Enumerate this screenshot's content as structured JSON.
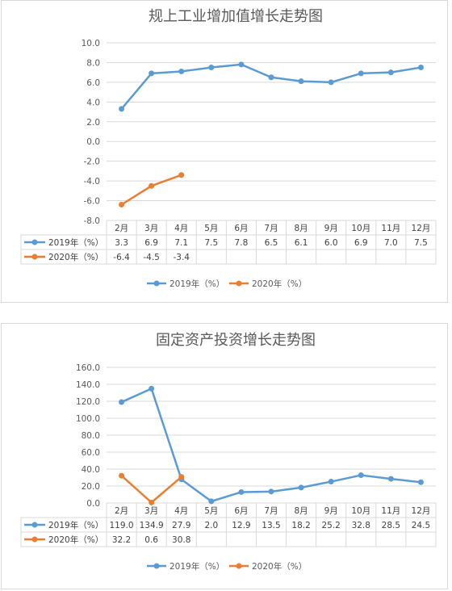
{
  "chart_data": [
    {
      "type": "line",
      "title": "规上工业增加值增长走势图",
      "categories": [
        "2月",
        "3月",
        "4月",
        "5月",
        "6月",
        "7月",
        "8月",
        "9月",
        "10月",
        "11月",
        "12月"
      ],
      "ylim": [
        -8,
        10
      ],
      "yticks": [
        "10.0",
        "8.0",
        "6.0",
        "4.0",
        "2.0",
        "0.0",
        "-2.0",
        "-4.0",
        "-6.0",
        "-8.0"
      ],
      "grid": true,
      "legend_position": "bottom",
      "data_table": true,
      "series": [
        {
          "name": "2019年（%）",
          "color": "#5b9bd5",
          "values": [
            3.3,
            6.9,
            7.1,
            7.5,
            7.8,
            6.5,
            6.1,
            6.0,
            6.9,
            7.0,
            7.5
          ],
          "labels": [
            "3.3",
            "6.9",
            "7.1",
            "7.5",
            "7.8",
            "6.5",
            "6.1",
            "6.0",
            "6.9",
            "7.0",
            "7.5"
          ]
        },
        {
          "name": "2020年（%）",
          "color": "#ed7d31",
          "values": [
            -6.4,
            -4.5,
            -3.4,
            null,
            null,
            null,
            null,
            null,
            null,
            null,
            null
          ],
          "labels": [
            "-6.4",
            "-4.5",
            "-3.4",
            "",
            "",
            "",
            "",
            "",
            "",
            "",
            ""
          ]
        }
      ]
    },
    {
      "type": "line",
      "title": "固定资产投资增长走势图",
      "categories": [
        "2月",
        "3月",
        "4月",
        "5月",
        "6月",
        "7月",
        "8月",
        "9月",
        "10月",
        "11月",
        "12月"
      ],
      "ylim": [
        0,
        160
      ],
      "yticks": [
        "160.0",
        "140.0",
        "120.0",
        "100.0",
        "80.0",
        "60.0",
        "40.0",
        "20.0",
        "0.0"
      ],
      "grid": true,
      "legend_position": "bottom",
      "data_table": true,
      "series": [
        {
          "name": "2019年（%）",
          "color": "#5b9bd5",
          "values": [
            119.0,
            134.9,
            27.9,
            2.0,
            12.9,
            13.5,
            18.2,
            25.2,
            32.8,
            28.5,
            24.5
          ],
          "labels": [
            "119.0",
            "134.9",
            "27.9",
            "2.0",
            "12.9",
            "13.5",
            "18.2",
            "25.2",
            "32.8",
            "28.5",
            "24.5"
          ]
        },
        {
          "name": "2020年（%）",
          "color": "#ed7d31",
          "values": [
            32.2,
            0.6,
            30.8,
            null,
            null,
            null,
            null,
            null,
            null,
            null,
            null
          ],
          "labels": [
            "32.2",
            "0.6",
            "30.8",
            "",
            "",
            "",
            "",
            "",
            "",
            "",
            ""
          ]
        }
      ]
    }
  ]
}
